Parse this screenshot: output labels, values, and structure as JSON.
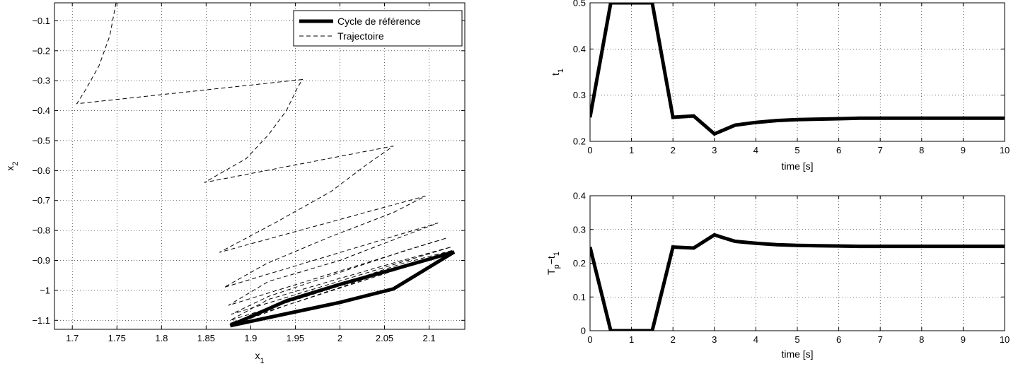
{
  "chart_data": [
    {
      "type": "line",
      "xlabel": "x",
      "xlabel_sub": "1",
      "ylabel": "x",
      "ylabel_sub": "2",
      "xlim": [
        1.68,
        2.14
      ],
      "ylim": [
        -1.13,
        -0.04
      ],
      "xticks": [
        1.7,
        1.75,
        1.8,
        1.85,
        1.9,
        1.95,
        2,
        2.05,
        2.1
      ],
      "xtick_labels": [
        "1.7",
        "1.75",
        "1.8",
        "1.85",
        "1.9",
        "1.95",
        "2",
        "2.05",
        "2.1"
      ],
      "yticks": [
        -0.1,
        -0.2,
        -0.3,
        -0.4,
        -0.5,
        -0.6,
        -0.7,
        -0.8,
        -0.9,
        -1,
        -1.1
      ],
      "ytick_labels": [
        "−0.1",
        "−0.2",
        "−0.3",
        "−0.4",
        "−0.5",
        "−0.6",
        "−0.7",
        "−0.8",
        "−0.9",
        "−1",
        "−1.1"
      ],
      "grid": true,
      "legend_position": "top-right",
      "series": [
        {
          "name": "Cycle de référence",
          "style": "solid-thick",
          "color": "#000000",
          "x": [
            1.877,
            1.94,
            2.0,
            2.06,
            2.128,
            2.06,
            2.0,
            1.94,
            1.877
          ],
          "y": [
            -1.118,
            -1.078,
            -1.04,
            -0.995,
            -0.872,
            -0.93,
            -0.98,
            -1.035,
            -1.118
          ]
        },
        {
          "name": "Trajectoire",
          "style": "dashed",
          "color": "#000000",
          "x": [
            1.749,
            1.742,
            1.73,
            1.715,
            1.705,
            1.958,
            1.953,
            1.94,
            1.92,
            1.895,
            1.848,
            2.06,
            2.03,
            1.99,
            1.93,
            1.865,
            2.096,
            2.06,
            1.99,
            1.918,
            1.87,
            2.11,
            2.07,
            2.0,
            1.92,
            1.875,
            2.12,
            2.07,
            2.0,
            1.92,
            1.878,
            2.125,
            2.07,
            2.0,
            1.92,
            1.877,
            2.127,
            2.07,
            2.0,
            1.93,
            1.877,
            2.128,
            2.06,
            2.0,
            1.94,
            1.877
          ],
          "y": [
            -0.04,
            -0.15,
            -0.25,
            -0.33,
            -0.377,
            -0.296,
            -0.32,
            -0.4,
            -0.48,
            -0.56,
            -0.64,
            -0.518,
            -0.58,
            -0.67,
            -0.77,
            -0.873,
            -0.685,
            -0.74,
            -0.82,
            -0.91,
            -0.99,
            -0.775,
            -0.82,
            -0.9,
            -0.97,
            -1.05,
            -0.825,
            -0.87,
            -0.94,
            -1.02,
            -1.08,
            -0.855,
            -0.9,
            -0.96,
            -1.03,
            -1.1,
            -0.866,
            -0.91,
            -0.98,
            -1.05,
            -1.11,
            -0.87,
            -0.93,
            -0.99,
            -1.05,
            -1.118
          ]
        }
      ]
    },
    {
      "type": "line",
      "xlabel": "time [s]",
      "ylabel": "t",
      "ylabel_sub": "1",
      "xlim": [
        0,
        10
      ],
      "ylim": [
        0.2,
        0.5
      ],
      "xticks": [
        0,
        1,
        2,
        3,
        4,
        5,
        6,
        7,
        8,
        9,
        10
      ],
      "xtick_labels": [
        "0",
        "1",
        "2",
        "3",
        "4",
        "5",
        "6",
        "7",
        "8",
        "9",
        "10"
      ],
      "yticks": [
        0.2,
        0.3,
        0.4,
        0.5
      ],
      "ytick_labels": [
        "0.2",
        "0.3",
        "0.4",
        "0.5"
      ],
      "grid": true,
      "series": [
        {
          "style": "solid-thick",
          "color": "#000000",
          "x": [
            0,
            0.5,
            1,
            1.5,
            2,
            2.5,
            3,
            3.5,
            4,
            4.5,
            5,
            5.5,
            6,
            6.5,
            7,
            7.5,
            8,
            8.5,
            9,
            9.5,
            10
          ],
          "y": [
            0.252,
            0.5,
            0.5,
            0.5,
            0.252,
            0.255,
            0.216,
            0.235,
            0.241,
            0.245,
            0.247,
            0.248,
            0.249,
            0.25,
            0.25,
            0.25,
            0.25,
            0.25,
            0.25,
            0.25,
            0.25
          ]
        }
      ]
    },
    {
      "type": "line",
      "xlabel": "time [s]",
      "ylabel": "T",
      "ylabel_sub": "p",
      "ylabel_rest": "−t",
      "ylabel_rest_sub": "1",
      "xlim": [
        0,
        10
      ],
      "ylim": [
        0,
        0.4
      ],
      "xticks": [
        0,
        1,
        2,
        3,
        4,
        5,
        6,
        7,
        8,
        9,
        10
      ],
      "xtick_labels": [
        "0",
        "1",
        "2",
        "3",
        "4",
        "5",
        "6",
        "7",
        "8",
        "9",
        "10"
      ],
      "yticks": [
        0,
        0.1,
        0.2,
        0.3,
        0.4
      ],
      "ytick_labels": [
        "0",
        "0.1",
        "0.2",
        "0.3",
        "0.4"
      ],
      "grid": true,
      "series": [
        {
          "style": "solid-thick",
          "color": "#000000",
          "x": [
            0,
            0.5,
            1,
            1.5,
            2,
            2.5,
            3,
            3.5,
            4,
            4.5,
            5,
            5.5,
            6,
            6.5,
            7,
            7.5,
            8,
            8.5,
            9,
            9.5,
            10
          ],
          "y": [
            0.248,
            0.0,
            0.0,
            0.0,
            0.248,
            0.245,
            0.284,
            0.265,
            0.259,
            0.255,
            0.253,
            0.252,
            0.251,
            0.25,
            0.25,
            0.25,
            0.25,
            0.25,
            0.25,
            0.25,
            0.25
          ]
        }
      ]
    }
  ]
}
